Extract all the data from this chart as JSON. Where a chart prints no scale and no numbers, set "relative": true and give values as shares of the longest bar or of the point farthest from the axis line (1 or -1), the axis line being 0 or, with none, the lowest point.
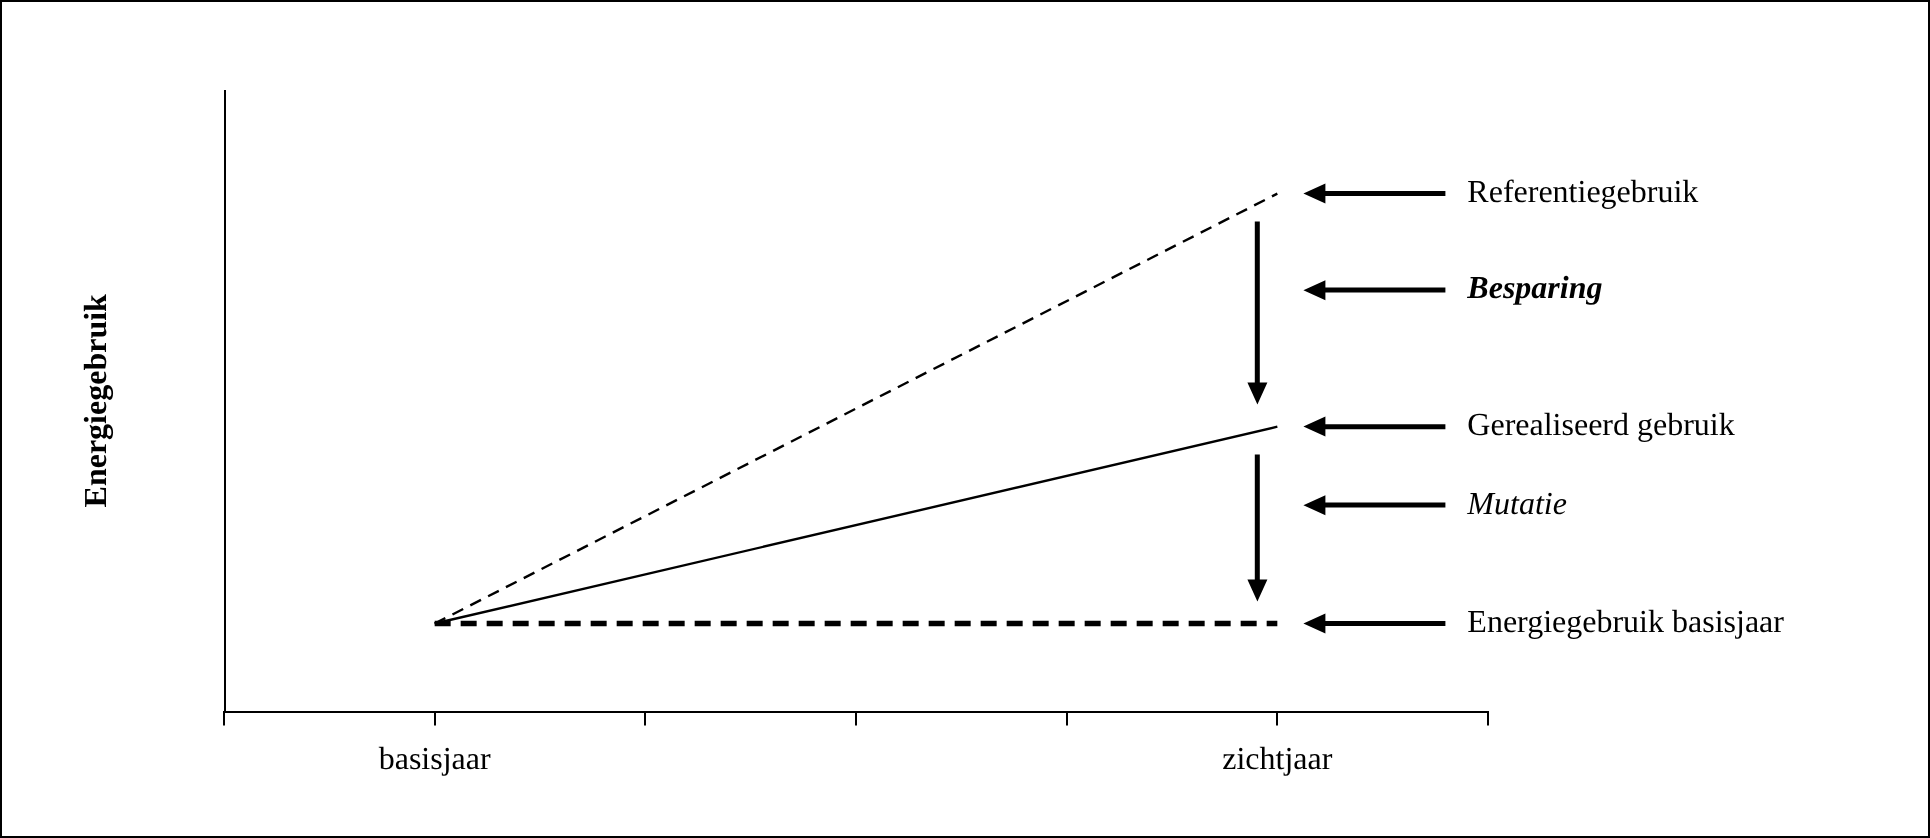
{
  "chart_data": {
    "type": "line",
    "relative": true,
    "ylabel": "Energiegebruik",
    "categories": [
      null,
      "basisjaar",
      null,
      null,
      null,
      "zichtjaar",
      null
    ],
    "series": [
      {
        "name": "Referentiegebruik",
        "color": "#000000",
        "line_style": "dashed",
        "values": [
          null,
          0.17,
          null,
          null,
          null,
          1,
          null
        ]
      },
      {
        "name": "Gerealiseerd gebruik",
        "color": "#000000",
        "line_style": "solid",
        "values": [
          null,
          0.17,
          null,
          null,
          null,
          0.55,
          null
        ]
      },
      {
        "name": "Energiegebruik basisjaar",
        "color": "#000000",
        "line_style": "dotted",
        "values": [
          null,
          0.17,
          null,
          null,
          null,
          0.17,
          null
        ]
      }
    ],
    "annotations": [
      "Besparing",
      "Mutatie"
    ],
    "legend": "right",
    "grid": false
  }
}
